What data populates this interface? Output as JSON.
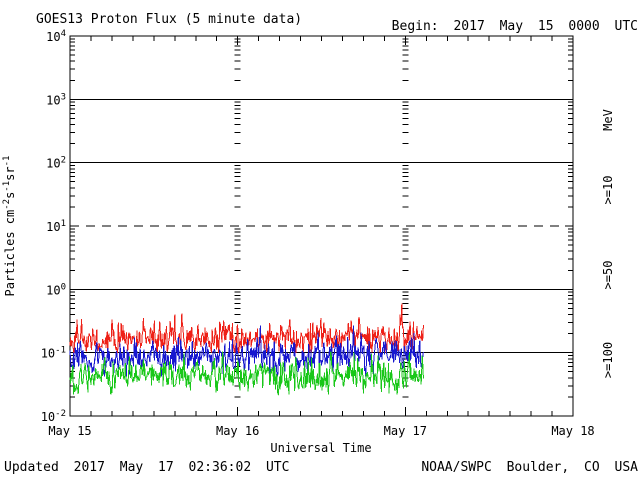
{
  "page": {
    "footer_left": "Updated 2017 May 17 02:36:02 UTC",
    "footer_right": "NOAA/SWPC Boulder, CO USA"
  },
  "chart_data": {
    "type": "line",
    "title": "GOES13 Proton Flux (5 minute data)",
    "begin_label": "Begin: 2017 May 15 0000 UTC",
    "xlabel": "Universal Time",
    "ylabel": "Particles cm-2s-1sr-1",
    "ylabel_segments": [
      {
        "t": "Particles cm"
      },
      {
        "t": "-2",
        "sup": true
      },
      {
        "t": "s"
      },
      {
        "t": "-1",
        "sup": true
      },
      {
        "t": "sr"
      },
      {
        "t": "-1",
        "sup": true
      }
    ],
    "x_tick_labels": [
      "May 15",
      "May 16",
      "May 17",
      "May 18"
    ],
    "x_range_days": 3,
    "y_ticks": [
      {
        "base": "10",
        "exp": "4"
      },
      {
        "base": "10",
        "exp": "3"
      },
      {
        "base": "10",
        "exp": "2"
      },
      {
        "base": "10",
        "exp": "1"
      },
      {
        "base": "10",
        "exp": "0"
      },
      {
        "base": "10",
        "exp": "-1"
      },
      {
        "base": "10",
        "exp": "-2"
      }
    ],
    "y_log_range": [
      -2,
      4
    ],
    "grid": {
      "solid_decades": [
        3,
        2,
        0,
        -1
      ],
      "dashed_decades": [
        1
      ]
    },
    "right_axis_unit": "MeV",
    "cadence_minutes": 5,
    "data_start_day": 0,
    "data_end_day": 2.107,
    "series": [
      {
        "label": ">=10",
        "threshold_mev": 10,
        "color": "#ee2017",
        "baseline_flux": 0.17,
        "flux_range": [
          0.1,
          0.6
        ],
        "sigma_log10": 0.12,
        "spike_prob": 0.02,
        "spike_max_mult": 2.6,
        "seed": 42
      },
      {
        "label": ">=50",
        "threshold_mev": 50,
        "color": "#1717cf",
        "baseline_flux": 0.088,
        "flux_range": [
          0.042,
          0.27
        ],
        "sigma_log10": 0.13,
        "spike_prob": 0.012,
        "spike_max_mult": 2.2,
        "seed": 1337
      },
      {
        "label": ">=100",
        "threshold_mev": 100,
        "color": "#19c719",
        "baseline_flux": 0.042,
        "flux_range": [
          0.022,
          0.11
        ],
        "sigma_log10": 0.12,
        "spike_prob": 0.012,
        "spike_max_mult": 2.0,
        "seed": 2024
      }
    ]
  }
}
